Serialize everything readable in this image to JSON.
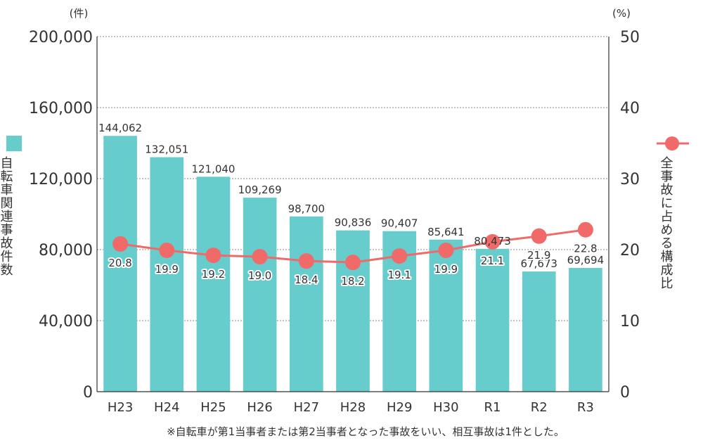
{
  "chart_data": {
    "type": "bar",
    "categories": [
      "H23",
      "H24",
      "H25",
      "H26",
      "H27",
      "H28",
      "H29",
      "H30",
      "R1",
      "R2",
      "R3"
    ],
    "series": [
      {
        "name": "自転車関連事故件数",
        "type": "bar",
        "axis": "left",
        "values": [
          144062,
          132051,
          121040,
          109269,
          98700,
          90836,
          90407,
          85641,
          80473,
          67673,
          69694
        ],
        "labels": [
          "144,062",
          "132,051",
          "121,040",
          "109,269",
          "98,700",
          "90,836",
          "90,407",
          "85,641",
          "80,473",
          "67,673",
          "69,694"
        ]
      },
      {
        "name": "全事故に占める構成比",
        "type": "line",
        "axis": "right",
        "values": [
          20.8,
          19.9,
          19.2,
          19.0,
          18.4,
          18.2,
          19.1,
          19.9,
          21.1,
          21.9,
          22.8
        ],
        "labels": [
          "20.8",
          "19.9",
          "19.2",
          "19.0",
          "18.4",
          "18.2",
          "19.1",
          "19.9",
          "21.1",
          "21.9",
          "22.8"
        ]
      }
    ],
    "y_left": {
      "unit": "(件)",
      "ylim": [
        0,
        200000
      ],
      "ticks": [
        0,
        40000,
        80000,
        120000,
        160000,
        200000
      ],
      "tick_labels": [
        "0",
        "40,000",
        "80,000",
        "120,000",
        "160,000",
        "200,000"
      ]
    },
    "y_right": {
      "unit": "(%)",
      "ylim": [
        0,
        50
      ],
      "ticks": [
        0,
        10,
        20,
        30,
        40,
        50
      ],
      "tick_labels": [
        "0",
        "10",
        "20",
        "30",
        "40",
        "50"
      ]
    },
    "grid": true,
    "legend_placement": "sides",
    "note": "※自転車が第1当事者または第2当事者となった事故をいい、相互事故は1件とした。",
    "colors": {
      "bar": "#66cccc",
      "line": "#f06a6a",
      "grid": "#888888",
      "axis": "#333333"
    }
  }
}
